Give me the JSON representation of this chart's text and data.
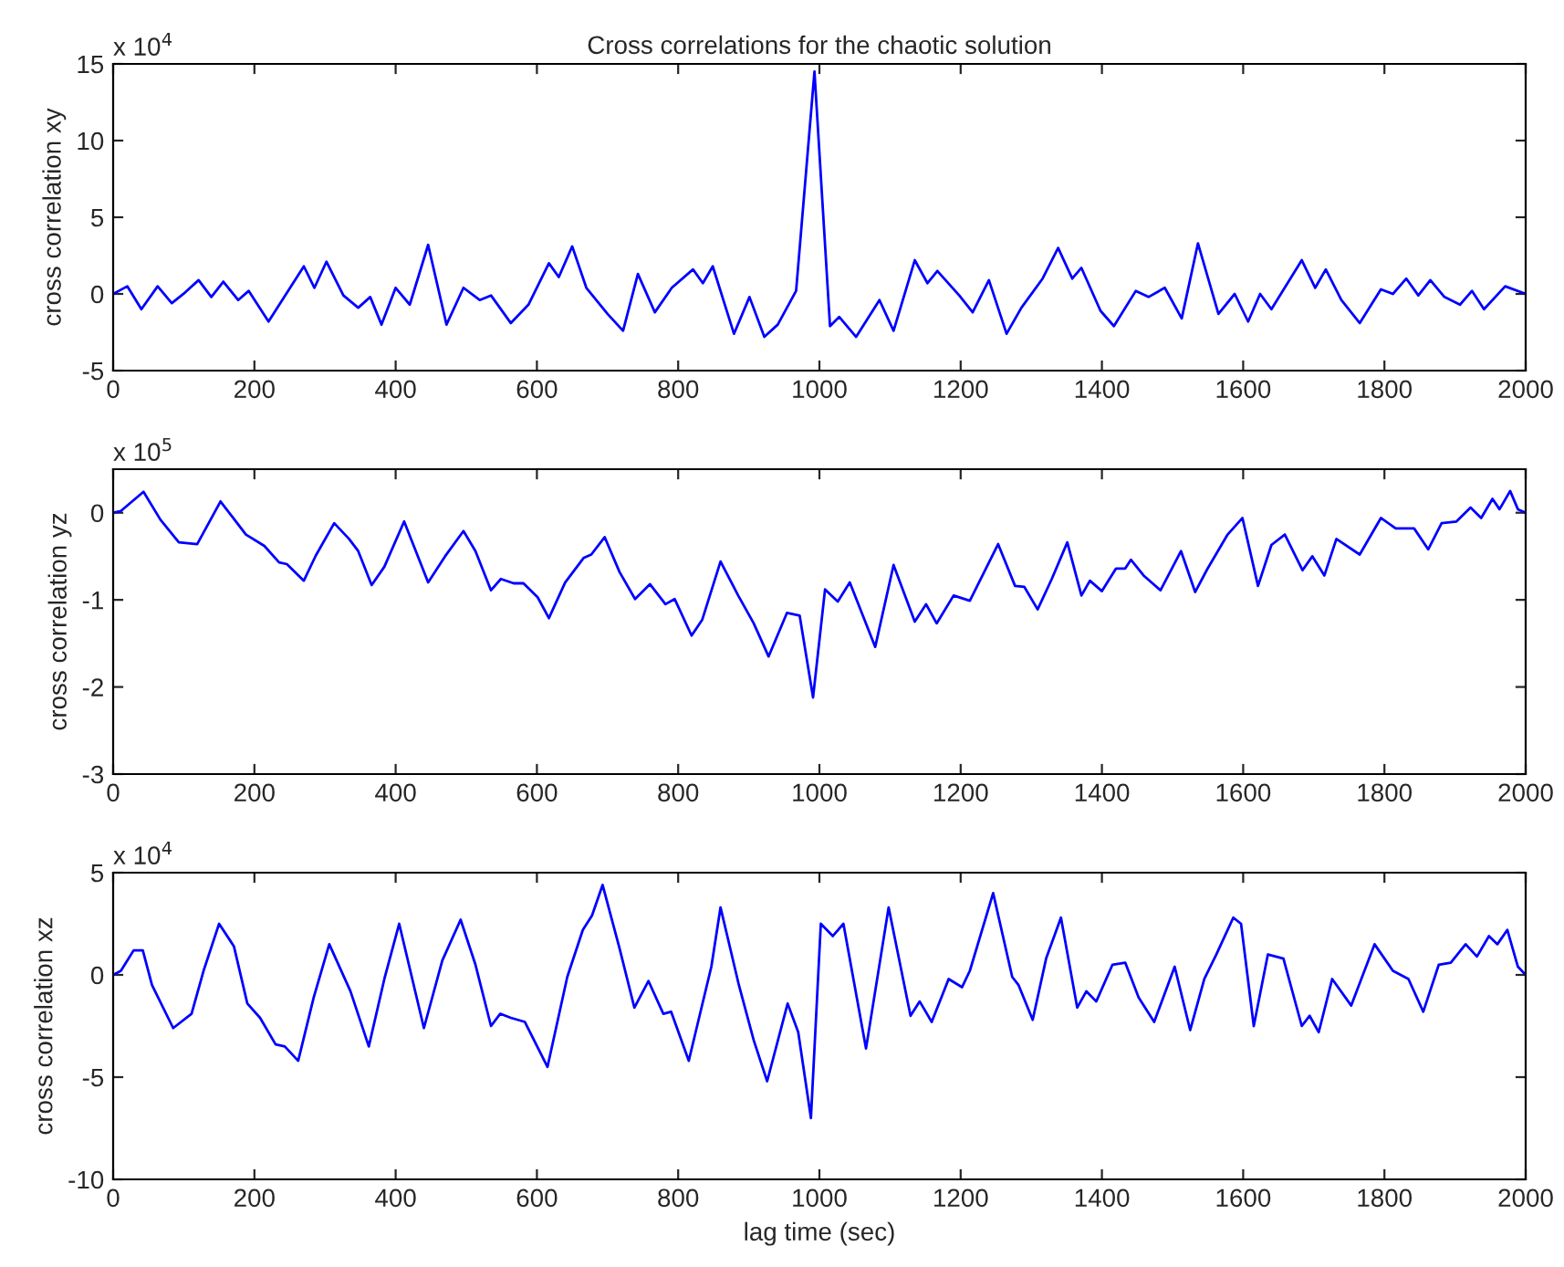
{
  "chart_data": [
    {
      "type": "line",
      "title": "Cross correlations for the chaotic solution",
      "ylabel": "cross correlation xy",
      "annotations": [
        "x 10$^{4}$"
      ],
      "x": [
        0,
        20,
        40,
        63,
        83,
        102,
        121,
        139,
        156,
        177,
        192,
        220,
        270,
        285,
        302,
        326,
        347,
        364,
        380,
        400,
        420,
        446,
        472,
        496,
        519,
        535,
        563,
        588,
        617,
        631,
        650,
        670,
        700,
        722,
        743,
        767,
        791,
        821,
        835,
        849,
        879,
        901,
        922,
        941,
        967,
        993,
        1015,
        1028,
        1052,
        1085,
        1105,
        1135,
        1153,
        1167,
        1198,
        1217,
        1240,
        1265,
        1286,
        1316,
        1338,
        1358,
        1371,
        1398,
        1417,
        1448,
        1466,
        1489,
        1513,
        1536,
        1565,
        1588,
        1607,
        1624,
        1640,
        1683,
        1702,
        1717,
        1739,
        1765,
        1795,
        1812,
        1831,
        1848,
        1865,
        1885,
        1907,
        1924,
        1941,
        1971,
        2000
      ],
      "series": [
        {
          "color": "#0000ff",
          "values": [
            0,
            0.5,
            -1.0,
            0.5,
            -0.6,
            0.1,
            0.9,
            -0.2,
            0.8,
            -0.4,
            0.2,
            -1.8,
            1.8,
            0.4,
            2.1,
            -0.1,
            -0.9,
            -0.2,
            -2.0,
            0.4,
            -0.7,
            3.2,
            -2.0,
            0.4,
            -0.4,
            -0.1,
            -1.9,
            -0.7,
            2.0,
            1.1,
            3.1,
            0.4,
            -1.3,
            -2.4,
            1.3,
            -1.2,
            0.4,
            1.6,
            0.7,
            1.8,
            -2.6,
            -0.2,
            -2.8,
            -2.0,
            0.2,
            14.5,
            -2.1,
            -1.5,
            -2.8,
            -0.4,
            -2.4,
            2.2,
            0.7,
            1.5,
            -0.1,
            -1.2,
            0.9,
            -2.6,
            -0.9,
            1.0,
            3.0,
            1.0,
            1.7,
            -1.1,
            -2.1,
            0.2,
            -0.2,
            0.4,
            -1.6,
            3.3,
            -1.3,
            0.0,
            -1.8,
            0.0,
            -1.0,
            2.2,
            0.4,
            1.6,
            -0.4,
            -1.9,
            0.3,
            0.0,
            1.0,
            -0.1,
            0.9,
            -0.2,
            -0.7,
            0.2,
            -1.0,
            0.5,
            0.0
          ]
        }
      ],
      "xlim": [
        0,
        2000
      ],
      "xticks": [
        0,
        200,
        400,
        600,
        800,
        1000,
        1200,
        1400,
        1600,
        1800,
        2000
      ],
      "ylim": [
        -5,
        15
      ],
      "yticks": [
        -5,
        0,
        5,
        10,
        15
      ]
    },
    {
      "type": "line",
      "ylabel": "cross correlation yz",
      "annotations": [
        "x 10$^{5}$"
      ],
      "x": [
        0,
        11,
        43,
        67,
        93,
        119,
        152,
        188,
        214,
        235,
        246,
        270,
        287,
        313,
        334,
        347,
        366,
        384,
        412,
        446,
        470,
        496,
        513,
        535,
        549,
        567,
        581,
        601,
        617,
        640,
        666,
        677,
        696,
        717,
        739,
        760,
        782,
        795,
        819,
        834,
        860,
        885,
        907,
        928,
        954,
        972,
        991,
        1008,
        1026,
        1043,
        1079,
        1105,
        1135,
        1151,
        1166,
        1190,
        1213,
        1253,
        1277,
        1290,
        1309,
        1329,
        1351,
        1371,
        1383,
        1400,
        1420,
        1433,
        1441,
        1459,
        1483,
        1512,
        1532,
        1549,
        1578,
        1599,
        1621,
        1640,
        1659,
        1684,
        1698,
        1715,
        1732,
        1765,
        1795,
        1816,
        1842,
        1862,
        1881,
        1902,
        1922,
        1937,
        1953,
        1963,
        1978,
        1989,
        2000
      ],
      "series": [
        {
          "color": "#0000ff",
          "values": [
            0,
            0.02,
            0.24,
            -0.08,
            -0.34,
            -0.36,
            0.13,
            -0.25,
            -0.38,
            -0.57,
            -0.59,
            -0.78,
            -0.49,
            -0.12,
            -0.3,
            -0.44,
            -0.83,
            -0.62,
            -0.1,
            -0.8,
            -0.5,
            -0.21,
            -0.44,
            -0.89,
            -0.76,
            -0.81,
            -0.81,
            -0.97,
            -1.21,
            -0.8,
            -0.52,
            -0.48,
            -0.28,
            -0.68,
            -0.99,
            -0.82,
            -1.05,
            -0.99,
            -1.41,
            -1.23,
            -0.56,
            -0.95,
            -1.27,
            -1.65,
            -1.15,
            -1.18,
            -2.12,
            -0.88,
            -1.02,
            -0.8,
            -1.54,
            -0.6,
            -1.25,
            -1.05,
            -1.27,
            -0.95,
            -1.01,
            -0.36,
            -0.84,
            -0.85,
            -1.11,
            -0.76,
            -0.34,
            -0.95,
            -0.78,
            -0.9,
            -0.64,
            -0.64,
            -0.54,
            -0.72,
            -0.89,
            -0.44,
            -0.91,
            -0.65,
            -0.25,
            -0.06,
            -0.84,
            -0.37,
            -0.25,
            -0.66,
            -0.5,
            -0.72,
            -0.3,
            -0.48,
            -0.06,
            -0.18,
            -0.18,
            -0.42,
            -0.12,
            -0.1,
            0.06,
            -0.06,
            0.16,
            0.04,
            0.25,
            0.04,
            0
          ]
        }
      ],
      "xlim": [
        0,
        2000
      ],
      "xticks": [
        0,
        200,
        400,
        600,
        800,
        1000,
        1200,
        1400,
        1600,
        1800,
        2000
      ],
      "ylim": [
        -3,
        0.5
      ],
      "yticks": [
        -3,
        -2,
        -1,
        0
      ]
    },
    {
      "type": "line",
      "xlabel": "lag time (sec)",
      "ylabel": "cross correlation xz",
      "annotations": [
        "x 10$^{4}$"
      ],
      "x": [
        0,
        11,
        29,
        42,
        55,
        85,
        111,
        128,
        150,
        171,
        190,
        208,
        230,
        243,
        262,
        284,
        306,
        336,
        362,
        384,
        405,
        440,
        466,
        492,
        513,
        535,
        548,
        563,
        583,
        615,
        643,
        665,
        678,
        693,
        717,
        738,
        758,
        779,
        790,
        815,
        847,
        860,
        886,
        907,
        926,
        955,
        970,
        988,
        1002,
        1019,
        1034,
        1066,
        1098,
        1129,
        1142,
        1159,
        1183,
        1202,
        1213,
        1246,
        1273,
        1282,
        1302,
        1321,
        1342,
        1365,
        1378,
        1392,
        1415,
        1433,
        1452,
        1474,
        1503,
        1525,
        1545,
        1562,
        1586,
        1597,
        1615,
        1635,
        1657,
        1683,
        1694,
        1707,
        1726,
        1753,
        1786,
        1812,
        1834,
        1855,
        1877,
        1894,
        1915,
        1931,
        1948,
        1960,
        1974,
        1989,
        2000
      ],
      "series": [
        {
          "color": "#0000ff",
          "values": [
            0,
            0.2,
            1.2,
            1.2,
            -0.5,
            -2.6,
            -1.9,
            0.2,
            2.5,
            1.4,
            -1.4,
            -2.1,
            -3.4,
            -3.5,
            -4.2,
            -1.1,
            1.5,
            -0.8,
            -3.5,
            -0.2,
            2.5,
            -2.6,
            0.7,
            2.7,
            0.5,
            -2.5,
            -1.9,
            -2.1,
            -2.3,
            -4.5,
            -0.1,
            2.2,
            2.9,
            4.4,
            1.3,
            -1.6,
            -0.3,
            -1.9,
            -1.8,
            -4.2,
            0.4,
            3.3,
            -0.5,
            -3.2,
            -5.2,
            -1.4,
            -2.8,
            -7.0,
            2.5,
            1.9,
            2.5,
            -3.6,
            3.3,
            -2.0,
            -1.3,
            -2.3,
            -0.2,
            -0.6,
            0.2,
            4.0,
            -0.1,
            -0.5,
            -2.2,
            0.8,
            2.8,
            -1.6,
            -0.8,
            -1.3,
            0.5,
            0.6,
            -1.1,
            -2.3,
            0.4,
            -2.7,
            -0.2,
            1.0,
            2.8,
            2.5,
            -2.5,
            1.0,
            0.8,
            -2.5,
            -2.0,
            -2.8,
            -0.2,
            -1.5,
            1.5,
            0.2,
            -0.2,
            -1.8,
            0.5,
            0.6,
            1.5,
            0.9,
            1.9,
            1.5,
            2.2,
            0.4,
            0
          ]
        }
      ],
      "xlim": [
        0,
        2000
      ],
      "xticks": [
        0,
        200,
        400,
        600,
        800,
        1000,
        1200,
        1400,
        1600,
        1800,
        2000
      ],
      "ylim": [
        -10,
        5
      ],
      "yticks": [
        -10,
        -5,
        0,
        5
      ]
    }
  ]
}
